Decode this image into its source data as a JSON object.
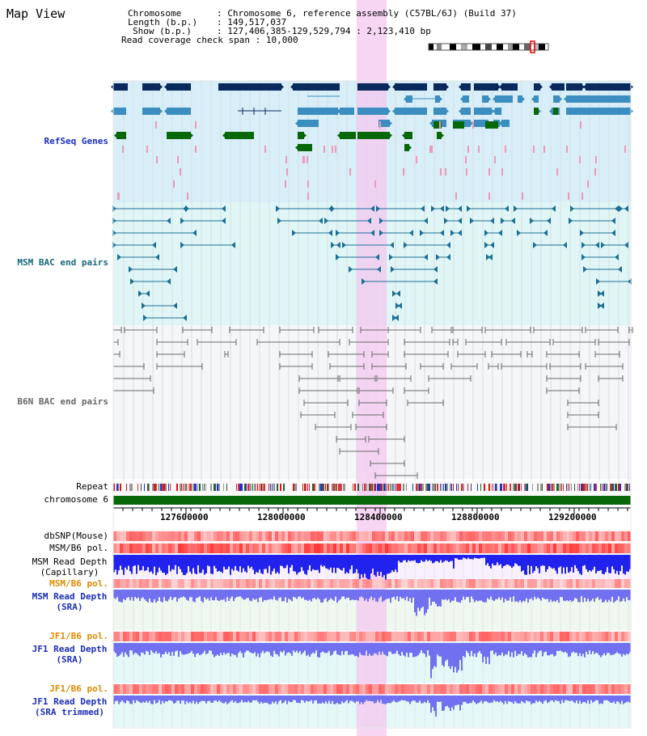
{
  "title": "Map View",
  "info": {
    "chromosome_key": "Chromosome",
    "chromosome_value": "Chromosome 6, reference assembly (C57BL/6J) (Build 37)",
    "length_key": "Length (b.p.)",
    "length_value": "149,517,037",
    "show_key": "Show (b.p.)",
    "show_value": "127,406,385-129,529,794 : 2,123,410 bp",
    "coverage_key": "Read coverage check span",
    "coverage_value": "10,000"
  },
  "tracks": {
    "refseq": "RefSeq Genes",
    "msm_bac": "MSM BAC end pairs",
    "b6n_bac": "B6N BAC end pairs",
    "repeat": "Repeat",
    "chromosome": "chromosome 6",
    "dbsnp": "dbSNP(Mouse)",
    "msm_pol": "MSM/B6 pol.",
    "msm_depth_cap_1": "MSM Read Depth",
    "msm_depth_cap_2": "(Capillary)",
    "msm_pol_2": "MSM/B6 pol.",
    "msm_depth_sra_1": "MSM Read Depth",
    "msm_depth_sra_2": "(SRA)",
    "jf1_pol": "JF1/B6 pol.",
    "jf1_depth_sra_1": "JF1 Read Depth",
    "jf1_depth_sra_2": "(SRA)",
    "jf1_pol_2": "JF1/B6 pol.",
    "jf1_depth_trim_1": "JF1 Read Depth",
    "jf1_depth_trim_2": "(SRA trimmed)"
  },
  "axis": {
    "ticks": [
      "127600000",
      "128000000",
      "128400000",
      "128800000",
      "129200000"
    ]
  },
  "colors": {
    "refseq_bg": "#d8eef8",
    "msm_bg": "#e0f6f6",
    "b6n_bg": "#f4f6f8",
    "highlight": "#f4c8f0",
    "gene_dark": "#0a2a5e",
    "gene_mid": "#3c8ec0",
    "gene_green": "#086808",
    "gene_pink": "#f098b8",
    "msm_line": "#1c6e94",
    "b6n_line": "#6a6a6a",
    "depth_blue": "#2222ee",
    "depth_light": "#7070f0",
    "chromosome_green": "#086808"
  }
}
